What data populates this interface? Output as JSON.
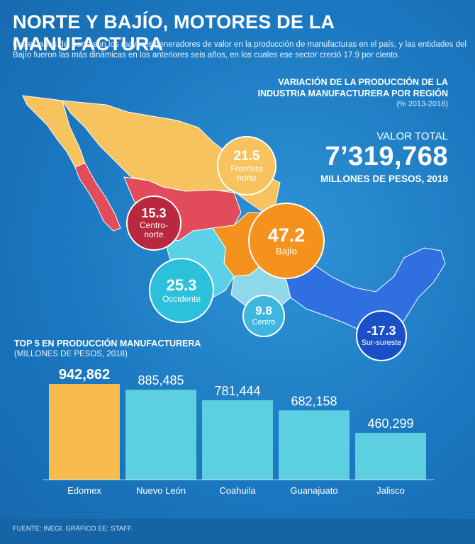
{
  "title": "NORTE Y BAJÍO, MOTORES DE LA MANUFACTURA",
  "intro": "Los estados del norte son los mayores generadores de valor en la producción de manufacturas en el país, y las entidades del Bajío fueron las más dinámicas en los anteriores seis años, en los cuales ese sector creció 17.9 por ciento.",
  "map_section": {
    "title_line1": "VARIACIÓN DE LA PRODUCCIÓN DE LA",
    "title_line2": "INDUSTRIA MANUFACTURERA POR REGIÓN",
    "note": "(% 2013-2018)"
  },
  "total": {
    "label": "VALOR TOTAL",
    "value": "7’319,768",
    "units": "MILLONES DE PESOS, 2018"
  },
  "colors": {
    "frontera_norte": "#f7c35e",
    "centro_norte": "#e24b5a",
    "bajio": "#f5921e",
    "occidente": "#5ad1e6",
    "centro": "#8fd8ea",
    "sur_sureste": "#2f6fe0",
    "bar_highlight": "#f7bb4e",
    "bar_default": "#5ccfe0"
  },
  "chart_data": [
    {
      "type": "bubble",
      "title": "VARIACIÓN DE LA PRODUCCIÓN DE LA INDUSTRIA MANUFACTURERA POR REGIÓN",
      "subtitle": "(% 2013-2018)",
      "regions": [
        {
          "name": "Frontera norte",
          "label1": "Frontera",
          "label2": "norte",
          "value": "21.5"
        },
        {
          "name": "Centro-norte",
          "label1": "Centro-",
          "label2": "norte",
          "value": "15.3"
        },
        {
          "name": "Bajío",
          "label1": "Bajío",
          "label2": "",
          "value": "47.2"
        },
        {
          "name": "Occidente",
          "label1": "Occidente",
          "label2": "",
          "value": "25.3"
        },
        {
          "name": "Centro",
          "label1": "Centro",
          "label2": "",
          "value": "9.8"
        },
        {
          "name": "Sur-sureste",
          "label1": "Sur-sureste",
          "label2": "",
          "value": "-17.3"
        }
      ]
    },
    {
      "type": "bar",
      "title": "TOP 5 EN PRODUCCIÓN MANUFACTURERA",
      "subtitle": "(MILLONES DE PESOS, 2018)",
      "categories": [
        "Edomex",
        "Nuevo León",
        "Coahuila",
        "Guanajuato",
        "Jalisco"
      ],
      "values": [
        942862,
        885485,
        781444,
        682158,
        460299
      ],
      "value_labels": [
        "942,862",
        "885,485",
        "781,444",
        "682,158",
        "460,299"
      ],
      "ylim": [
        0,
        942862
      ]
    }
  ],
  "footer": "FUENTE: INEGI. GRÁFICO EE: STAFF."
}
